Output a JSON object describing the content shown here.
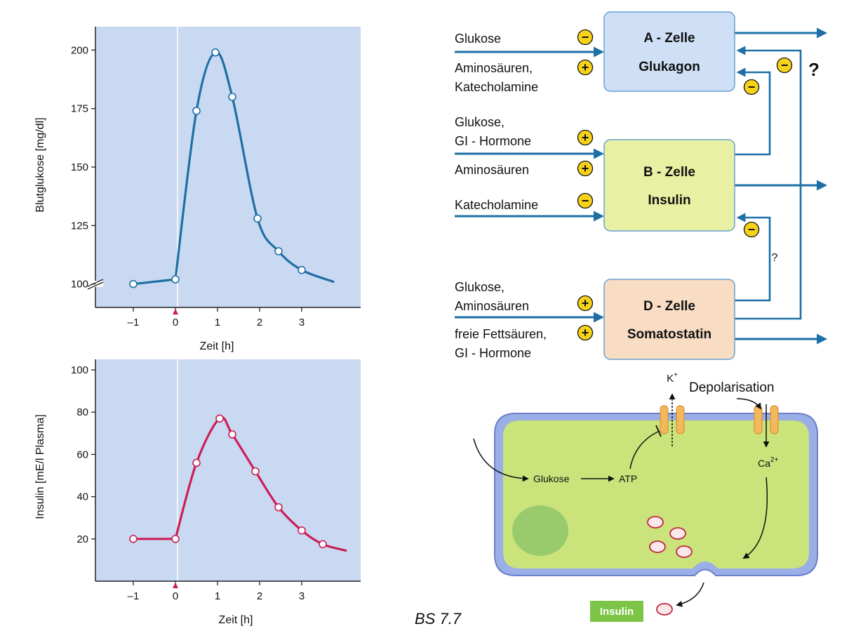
{
  "colors": {
    "plot_bg": "#c9d9f2",
    "glucose_line": "#1f6fa3",
    "insulin_line": "#cc1e55",
    "arrow_blue": "#1d6fa5",
    "a_cell": "#cfe0f6",
    "b_cell": "#e7f0a3",
    "d_cell": "#f8dcc4",
    "cell_border": "#6a9fd0",
    "sign_fill": "#f6d219",
    "cell_green": "#cbe37b",
    "membrane": "#9aaee8",
    "insulin_tag": "#7cc547"
  },
  "chart_data": [
    {
      "type": "line",
      "xlabel": "Zeit [h]",
      "ylabel": "Blutglukose [mg/dl]",
      "ylim": [
        90,
        210
      ],
      "xlim": [
        -1.9,
        4.4
      ],
      "xticks": [
        "–1",
        "0",
        "1",
        "2",
        "3"
      ],
      "yticks": [
        "100",
        "125",
        "150",
        "175",
        "200"
      ],
      "axis_break": true,
      "start_marker_x": 0,
      "series": [
        {
          "points": [
            [
              -1,
              100
            ],
            [
              0,
              102
            ],
            [
              0.5,
              174
            ],
            [
              0.95,
              199
            ],
            [
              1.35,
              180
            ],
            [
              1.95,
              128
            ],
            [
              2.45,
              114
            ],
            [
              3.0,
              106
            ]
          ],
          "curve_end": [
            3.75,
            101
          ]
        }
      ]
    },
    {
      "type": "line",
      "xlabel": "Zeit [h]",
      "ylabel": "Insulin [mE/l Plasma]",
      "ylim": [
        0,
        105
      ],
      "xlim": [
        -1.9,
        4.4
      ],
      "xticks": [
        "–1",
        "0",
        "1",
        "2",
        "3"
      ],
      "yticks": [
        "20",
        "40",
        "60",
        "80",
        "100"
      ],
      "start_marker_x": 0,
      "series": [
        {
          "points": [
            [
              -1,
              20
            ],
            [
              0,
              20
            ],
            [
              0.5,
              56
            ],
            [
              1.05,
              77
            ],
            [
              1.35,
              69.5
            ],
            [
              1.9,
              52
            ],
            [
              2.45,
              35
            ],
            [
              3.0,
              24
            ],
            [
              3.5,
              17.5
            ]
          ],
          "curve_end": [
            4.05,
            14.5
          ]
        }
      ]
    }
  ],
  "regulation": {
    "a_cell": {
      "line1": "A - Zelle",
      "line2": "Glukagon"
    },
    "b_cell": {
      "line1": "B - Zelle",
      "line2": "Insulin"
    },
    "d_cell": {
      "line1": "D - Zelle",
      "line2": "Somatostatin"
    },
    "inputs": [
      {
        "text": [
          "Glukose"
        ],
        "sign": "−"
      },
      {
        "text": [
          "Aminosäuren,",
          "Katecholamine"
        ],
        "sign": "+"
      },
      {
        "text": [
          "Glukose,",
          "GI - Hormone"
        ],
        "sign": "+"
      },
      {
        "text": [
          "Aminosäuren"
        ],
        "sign": "+"
      },
      {
        "text": [
          "Katecholamine"
        ],
        "sign": "−"
      },
      {
        "text": [
          "Glukose,",
          "Aminosäuren"
        ],
        "sign": "+"
      },
      {
        "text": [
          "freie Fettsäuren,",
          "GI - Hormone"
        ],
        "sign": "+"
      }
    ],
    "feedback_signs": [
      "−",
      "−",
      "−"
    ],
    "question_marks": [
      "?",
      "?"
    ]
  },
  "cell": {
    "k_label": "K",
    "k_sup": "+",
    "depolarisation": "Depolarisation",
    "glucose": "Glukose",
    "atp": "ATP",
    "ca_label": "Ca",
    "ca_sup": "2+",
    "insulin_tag": "Insulin"
  },
  "caption": "BS 7.7"
}
